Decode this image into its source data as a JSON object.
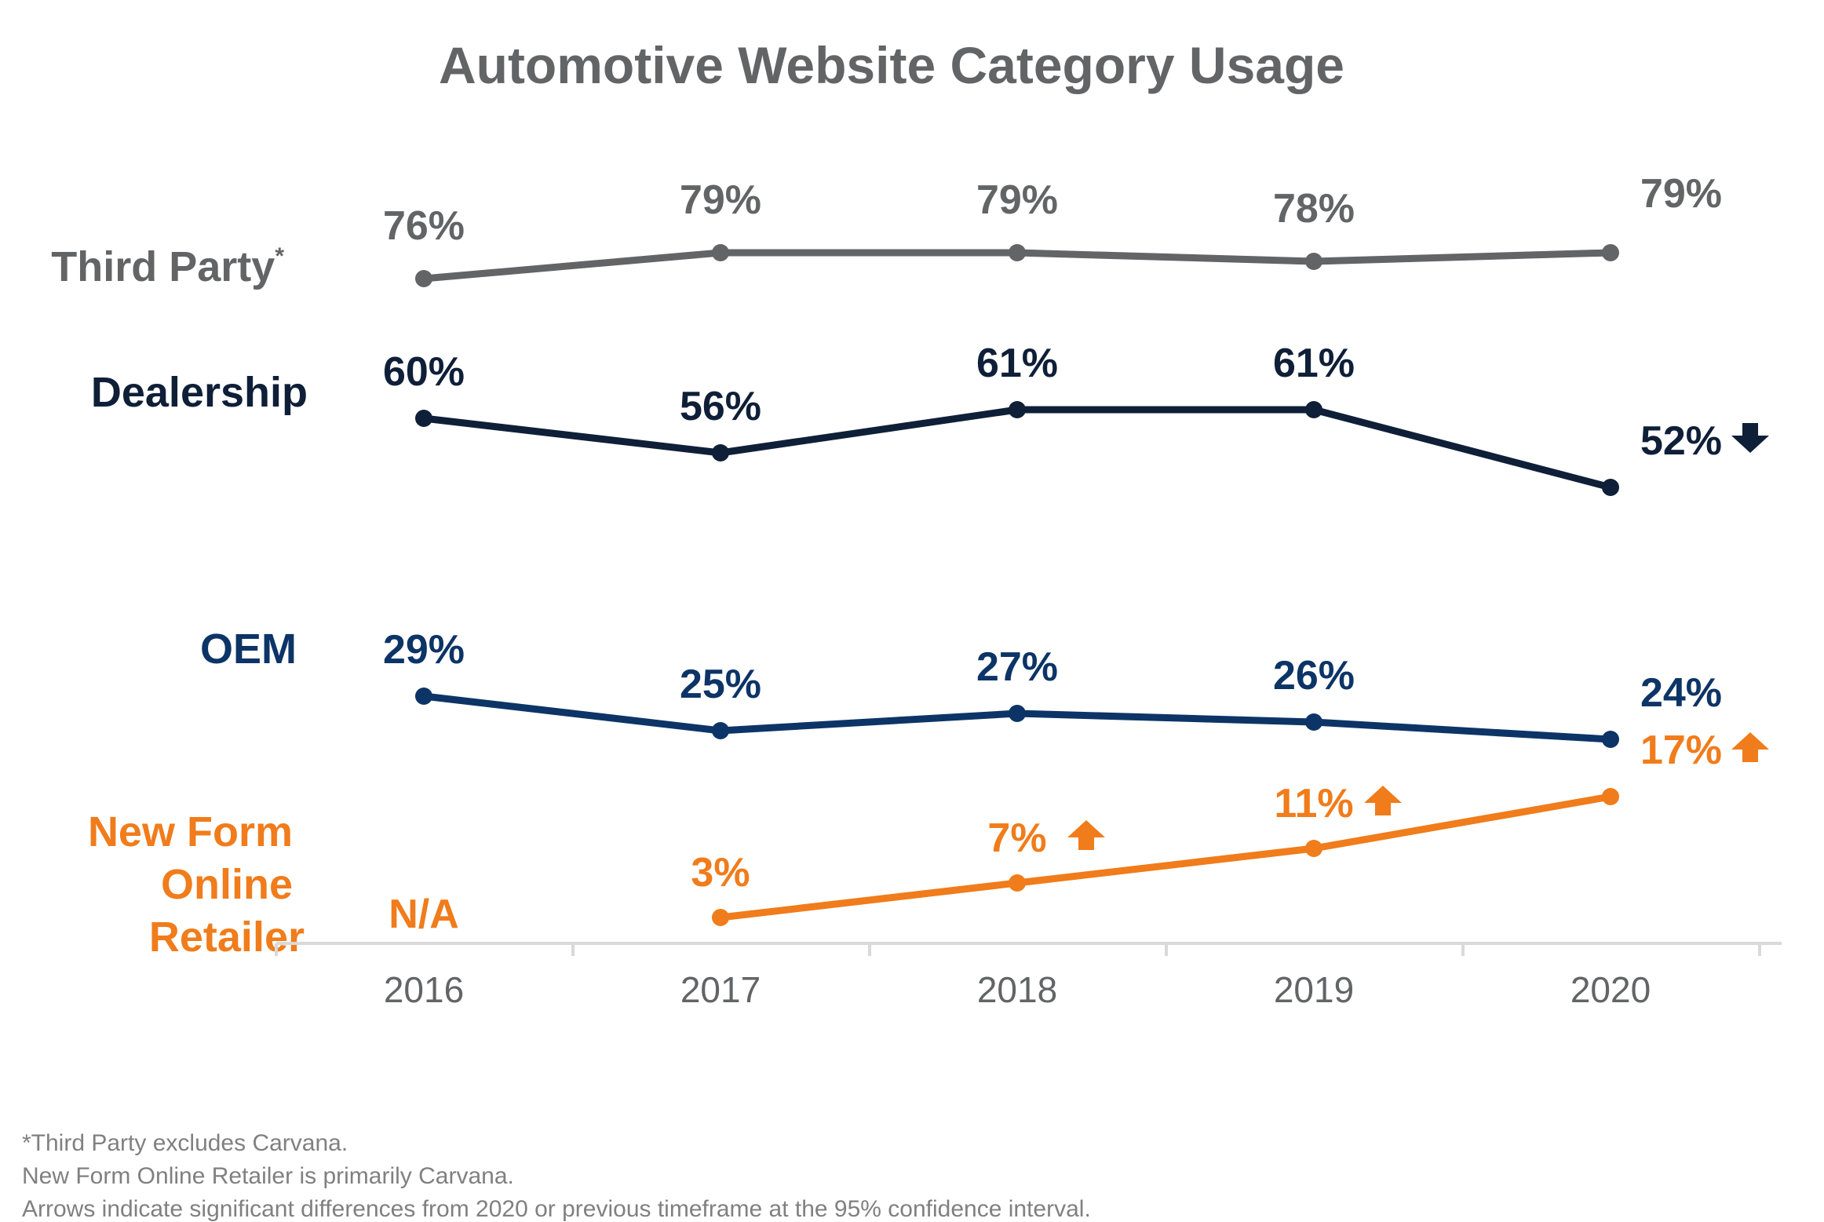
{
  "chart_data": {
    "type": "line",
    "title": "Automotive Website Category Usage",
    "xlabel": "",
    "ylabel": "",
    "categories": [
      "2016",
      "2017",
      "2018",
      "2019",
      "2020"
    ],
    "grid": false,
    "legend": "left (series labels beside lines)",
    "series": [
      {
        "name": "Third Party",
        "name_suffix": "*",
        "color": "#636466",
        "values": [
          76,
          79,
          79,
          78,
          79
        ],
        "labels": [
          "76%",
          "79%",
          "79%",
          "78%",
          "79%"
        ],
        "arrows": [
          null,
          null,
          null,
          null,
          null
        ]
      },
      {
        "name": "Dealership",
        "color": "#0f1f38",
        "values": [
          60,
          56,
          61,
          61,
          52
        ],
        "labels": [
          "60%",
          "56%",
          "61%",
          "61%",
          "52%"
        ],
        "arrows": [
          null,
          null,
          null,
          null,
          "down"
        ]
      },
      {
        "name": "OEM",
        "color": "#0d3466",
        "values": [
          29,
          25,
          27,
          26,
          24
        ],
        "labels": [
          "29%",
          "25%",
          "27%",
          "26%",
          "24%"
        ],
        "arrows": [
          null,
          null,
          null,
          null,
          null
        ]
      },
      {
        "name": "New Form Online Retailer",
        "name_lines": [
          "New Form",
          "Online",
          "Retailer"
        ],
        "color": "#f07c1b",
        "values": [
          null,
          3,
          7,
          11,
          17
        ],
        "labels": [
          "N/A",
          "3%",
          "7%",
          "11%",
          "17%"
        ],
        "arrows": [
          null,
          null,
          "up",
          "up",
          "up"
        ]
      }
    ],
    "footnotes": [
      "*Third Party excludes Carvana.",
      "New Form Online Retailer is primarily Carvana.",
      "Arrows indicate significant differences from 2020 or previous timeframe at the 95% confidence interval."
    ]
  }
}
